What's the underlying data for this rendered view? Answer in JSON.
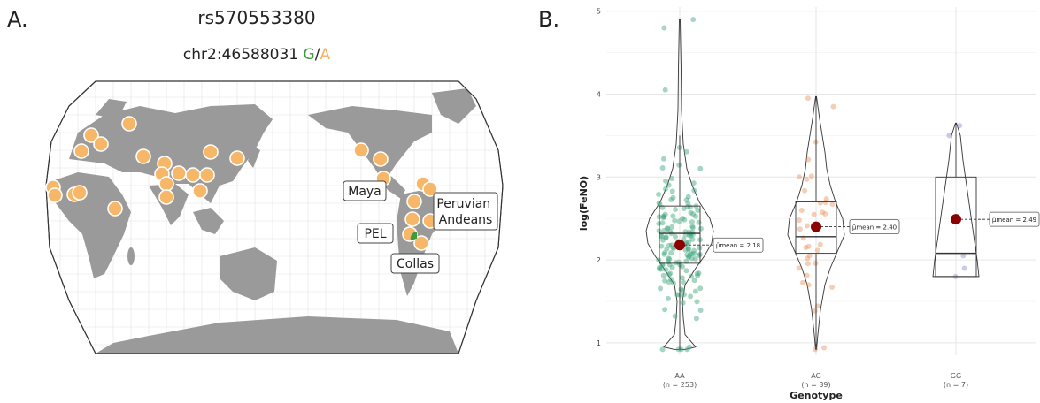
{
  "panels": {
    "a_letter": "A.",
    "b_letter": "B."
  },
  "map": {
    "title": "rs570553380",
    "coordinate": "chr2:46588031",
    "allele_ref": "G",
    "separator": "/",
    "allele_alt": "A",
    "colors": {
      "land": "#9a9a9a",
      "ocean": "#ffffff",
      "marker": "#f6b768",
      "ref_allele": "#3f9b3f",
      "alt_allele": "#f4b060"
    },
    "labels": [
      {
        "text": "Maya"
      },
      {
        "text": "Peruvian\nAndeans"
      },
      {
        "text": "PEL"
      },
      {
        "text": "Collas"
      }
    ]
  },
  "chart_data": {
    "type": "violin-box",
    "xlabel": "Genotype",
    "ylabel": "log(FeNO)",
    "ylim": [
      0.85,
      5.05
    ],
    "yticks": [
      1,
      2,
      3,
      4,
      5
    ],
    "grid": true,
    "categories": [
      {
        "name": "AA",
        "n_label": "(n = 253)",
        "color": "#3aa37a",
        "mean": 2.18,
        "mean_label": "μ̂mean = 2.18",
        "box": {
          "q1": 1.96,
          "median": 2.32,
          "q3": 2.65,
          "lo": 0.92,
          "hi": 3.5
        }
      },
      {
        "name": "AG",
        "n_label": "(n = 39)",
        "color": "#e7925e",
        "mean": 2.4,
        "mean_label": "μ̂mean = 2.40",
        "box": {
          "q1": 2.08,
          "median": 2.28,
          "q3": 2.7,
          "lo": 0.92,
          "hi": 3.97
        }
      },
      {
        "name": "GG",
        "n_label": "(n = 7)",
        "color": "#8a8ec8",
        "mean": 2.49,
        "mean_label": "μ̂mean = 2.49",
        "box": {
          "q1": 1.8,
          "median": 2.08,
          "q3": 3.0,
          "lo": 1.8,
          "hi": 3.65
        }
      }
    ]
  }
}
